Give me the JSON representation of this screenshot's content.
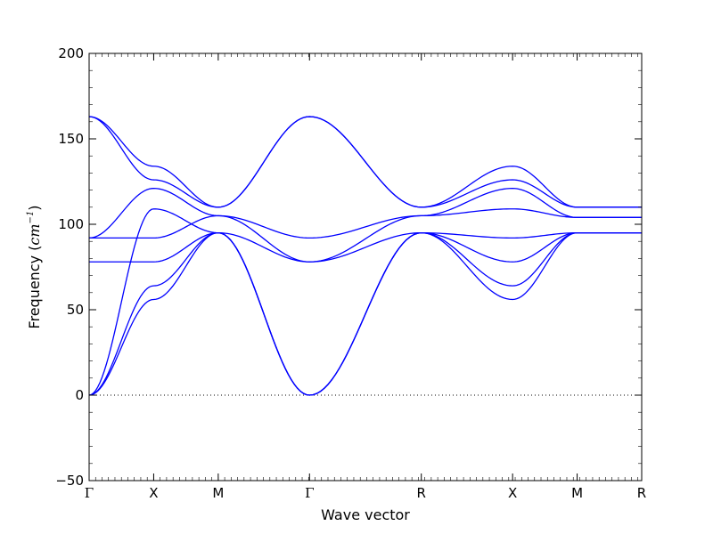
{
  "chart_data": {
    "type": "line",
    "title": "",
    "xlabel": "Wave vector",
    "ylabel_prefix": "Frequency (",
    "ylabel_unit_base": "cm",
    "ylabel_unit_exponent": "−1",
    "ylabel_suffix": ")",
    "ylim": [
      -50,
      200
    ],
    "yticks": [
      -50,
      0,
      50,
      100,
      150,
      200
    ],
    "ytick_labels": [
      "−50",
      "0",
      "50",
      "100",
      "150",
      "200"
    ],
    "x_path_labels": [
      "Γ",
      "X",
      "M",
      "Γ",
      "R",
      "X",
      "M",
      "R"
    ],
    "x_path_distances": [
      0,
      0.5,
      1.0,
      1.707,
      2.573,
      3.28,
      3.78,
      4.28
    ],
    "zero_line": {
      "y": 0,
      "style": "dotted"
    },
    "grid": false,
    "legend": "none",
    "line_color": "#0000ff",
    "series": [
      {
        "x": [
          0,
          0.5,
          1.0,
          1.707,
          2.573,
          3.28,
          3.78,
          4.28
        ],
        "y": [
          0,
          56,
          95,
          0,
          95,
          56,
          95,
          95
        ]
      },
      {
        "x": [
          0,
          0.5,
          1.0,
          1.707,
          2.573,
          3.28,
          3.78,
          4.28
        ],
        "y": [
          0,
          64,
          95,
          0,
          95,
          64,
          95,
          95
        ]
      },
      {
        "x": [
          0,
          0.5,
          1.0,
          1.707,
          2.573,
          3.28,
          3.78,
          4.28
        ],
        "y": [
          0,
          109,
          95,
          0,
          95,
          78,
          95,
          95
        ]
      },
      {
        "x": [
          0,
          0.5,
          1.0,
          1.707,
          2.573,
          3.28,
          3.78,
          4.28
        ],
        "y": [
          78,
          78,
          95,
          78,
          95,
          92,
          95,
          95
        ]
      },
      {
        "x": [
          0,
          0.5,
          1.0,
          1.707,
          2.573,
          3.28,
          3.78,
          4.28
        ],
        "y": [
          92,
          92,
          105,
          78,
          105,
          109,
          104,
          104
        ]
      },
      {
        "x": [
          0,
          0.5,
          1.0,
          1.707,
          2.573,
          3.28,
          3.78,
          4.28
        ],
        "y": [
          92,
          121,
          105,
          92,
          105,
          121,
          104,
          104
        ]
      },
      {
        "x": [
          0,
          0.5,
          1.0,
          1.707,
          2.573,
          3.28,
          3.78,
          4.28
        ],
        "y": [
          163,
          126,
          110,
          163,
          110,
          126,
          110,
          110
        ]
      },
      {
        "x": [
          0,
          0.5,
          1.0,
          1.707,
          2.573,
          3.28,
          3.78,
          4.28
        ],
        "y": [
          163,
          134,
          110,
          163,
          110,
          134,
          110,
          110
        ]
      }
    ]
  }
}
